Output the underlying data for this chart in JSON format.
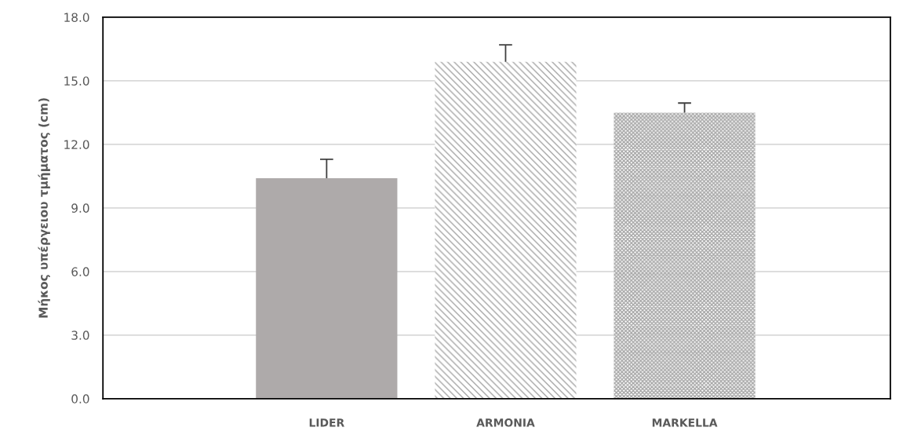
{
  "chart_data": {
    "type": "bar",
    "ylabel": "Μήκος υπέργειου τμήματος (cm)",
    "categories": [
      "LIDER",
      "ARMONIA",
      "MARKELLA"
    ],
    "values": [
      10.4,
      15.9,
      13.5
    ],
    "errors": [
      0.9,
      0.8,
      0.45
    ],
    "colors": [
      "#aeaaaa",
      "#a6a6a6",
      "#a6a6a6"
    ],
    "ylim": [
      0,
      18
    ],
    "yticks": [
      {
        "value": 0,
        "label": "0.0"
      },
      {
        "value": 3,
        "label": "3.0"
      },
      {
        "value": 6,
        "label": "6.0"
      },
      {
        "value": 9,
        "label": "9.0"
      },
      {
        "value": 12,
        "label": "12.0"
      },
      {
        "value": 15,
        "label": "15.0"
      },
      {
        "value": 18,
        "label": "18.0"
      }
    ],
    "grid": "y"
  }
}
